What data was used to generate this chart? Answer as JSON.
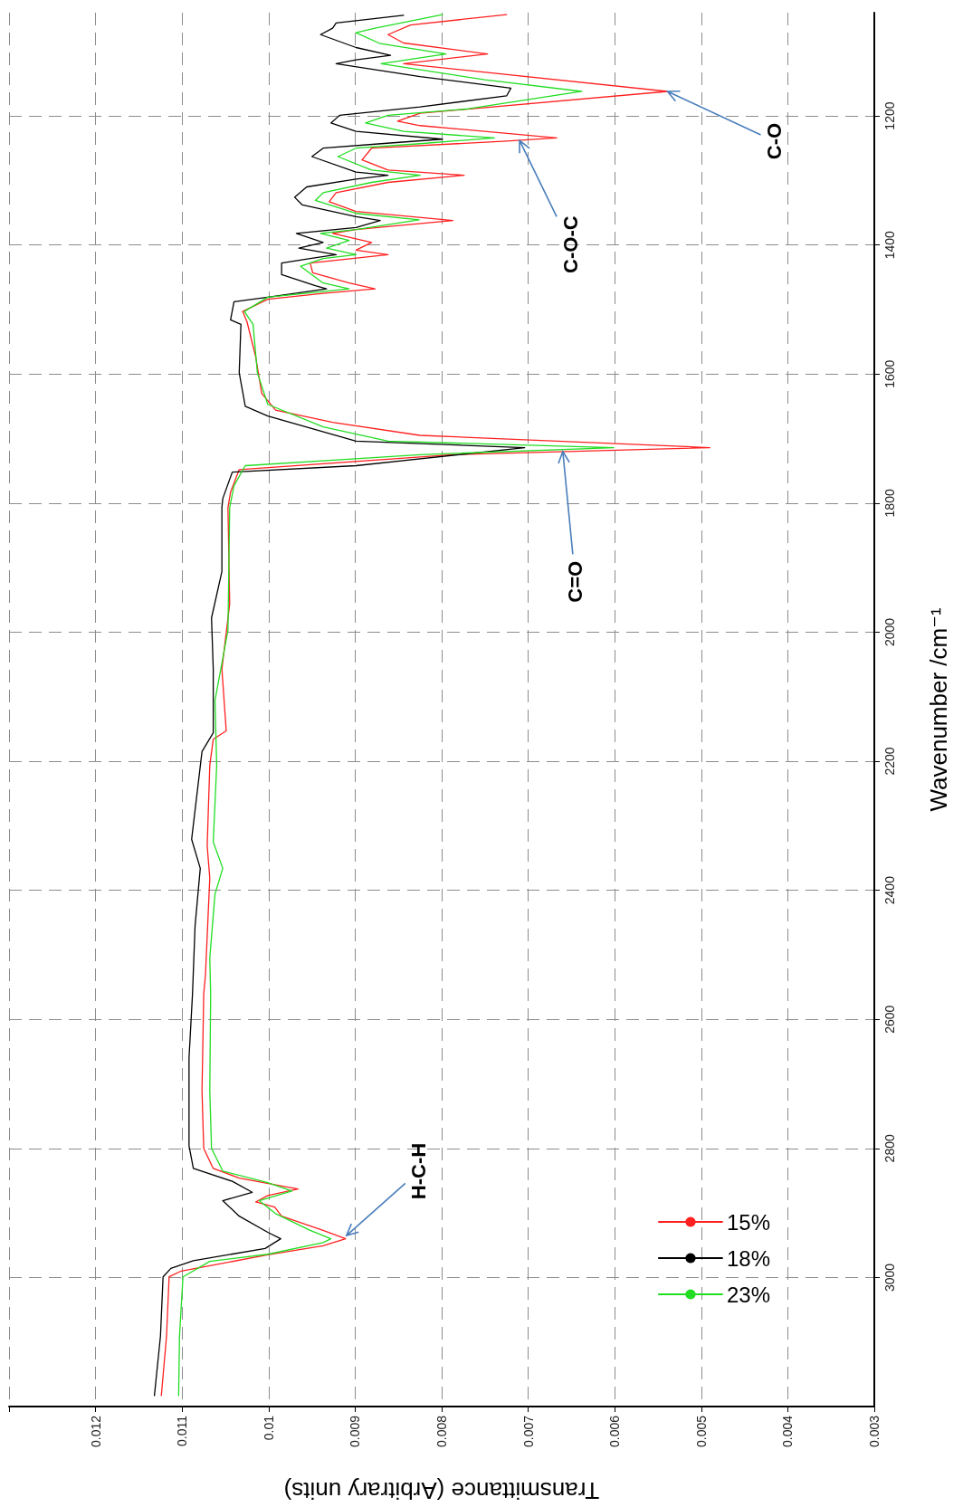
{
  "chart_data": {
    "type": "line",
    "xlabel": "Transmittance (Arbitrary units)",
    "ylabel": "Wavenumber /cm⁻¹",
    "xlim": [
      0.013,
      0.003
    ],
    "xticks": [
      {
        "value": 0.013,
        "label": null
      },
      0.012,
      0.011,
      0.01,
      0.009,
      0.008,
      0.007,
      0.006,
      0.005,
      0.004,
      0.003
    ],
    "ylim": [
      3200,
      1040
    ],
    "yticks": [
      1200,
      1400,
      1600,
      1800,
      2000,
      2200,
      2400,
      2600,
      2800,
      3000
    ],
    "grid": true,
    "legend": "bottom right",
    "marker": "none",
    "line_style": "solid",
    "series": [
      {
        "name": "15%",
        "color": "#ff2020",
        "values": [
          3183,
          3091,
          2999,
          2990,
          2965,
          2951,
          2940,
          2927,
          2905,
          2891,
          2883,
          2873,
          2863,
          2859,
          2846,
          2831,
          2800,
          2711,
          2561,
          2531,
          2381,
          2331,
          2206,
          2166,
          2153,
          2057,
          1956,
          1807,
          1783,
          1748,
          1725,
          1714,
          1695,
          1675,
          1656,
          1630,
          1573,
          1519,
          1503,
          1484,
          1475,
          1468,
          1459,
          1443,
          1428,
          1415,
          1408,
          1396,
          1382,
          1376,
          1362,
          1348,
          1333,
          1319,
          1303,
          1292,
          1284,
          1268,
          1250,
          1239,
          1234,
          1215,
          1208,
          1196,
          1162,
          1119,
          1104,
          1087,
          1074,
          1059,
          1043
        ],
        "x": [
          0.01124,
          0.01118,
          0.01115,
          0.01101,
          0.01001,
          0.00937,
          0.00911,
          0.00937,
          0.00985,
          0.00993,
          0.01015,
          0.01001,
          0.00966,
          0.00982,
          0.01034,
          0.01064,
          0.01075,
          0.01077,
          0.01075,
          0.01073,
          0.01068,
          0.01071,
          0.01068,
          0.01064,
          0.01049,
          0.01054,
          0.01045,
          0.01047,
          0.01044,
          0.01034,
          0.00787,
          0.0049,
          0.00825,
          0.00926,
          0.00992,
          0.01008,
          0.01015,
          0.01025,
          0.0103,
          0.01001,
          0.00937,
          0.00877,
          0.00907,
          0.00949,
          0.00952,
          0.00862,
          0.00899,
          0.00881,
          0.00926,
          0.00899,
          0.00787,
          0.00899,
          0.0093,
          0.00922,
          0.00862,
          0.00774,
          0.00862,
          0.00892,
          0.00881,
          0.00725,
          0.00667,
          0.00825,
          0.00851,
          0.00825,
          0.00539,
          0.00844,
          0.00747,
          0.00844,
          0.00862,
          0.00836,
          0.00725
        ]
      },
      {
        "name": "18%",
        "color": "#000000",
        "values": [
          3183,
          3091,
          2999,
          2986,
          2974,
          2955,
          2940,
          2930,
          2905,
          2881,
          2868,
          2851,
          2831,
          2796,
          2660,
          2561,
          2455,
          2366,
          2321,
          2185,
          2156,
          2057,
          1978,
          1906,
          1807,
          1793,
          1752,
          1742,
          1714,
          1704,
          1665,
          1650,
          1598,
          1523,
          1516,
          1488,
          1481,
          1468,
          1463,
          1446,
          1428,
          1421,
          1415,
          1405,
          1396,
          1382,
          1373,
          1362,
          1356,
          1338,
          1326,
          1310,
          1298,
          1292,
          1287,
          1263,
          1250,
          1243,
          1236,
          1224,
          1211,
          1199,
          1186,
          1169,
          1157,
          1139,
          1119,
          1113,
          1106,
          1094,
          1074,
          1064,
          1056,
          1044
        ],
        "x": [
          0.01132,
          0.01125,
          0.01122,
          0.01113,
          0.01087,
          0.01004,
          0.00986,
          0.01001,
          0.01034,
          0.01053,
          0.01019,
          0.01042,
          0.01087,
          0.01092,
          0.01092,
          0.01088,
          0.01085,
          0.01079,
          0.01089,
          0.01077,
          0.01064,
          0.01064,
          0.01066,
          0.01054,
          0.01054,
          0.01053,
          0.01042,
          0.00899,
          0.00704,
          0.00899,
          0.01001,
          0.01027,
          0.01034,
          0.01032,
          0.01044,
          0.0104,
          0.01001,
          0.00933,
          0.00946,
          0.00985,
          0.00985,
          0.00952,
          0.00922,
          0.00965,
          0.00937,
          0.00968,
          0.00899,
          0.00871,
          0.00899,
          0.00961,
          0.0097,
          0.00956,
          0.00899,
          0.00862,
          0.00899,
          0.0095,
          0.00937,
          0.0087,
          0.00799,
          0.00899,
          0.00928,
          0.00918,
          0.00825,
          0.00725,
          0.0072,
          0.00825,
          0.00922,
          0.00899,
          0.00859,
          0.00899,
          0.0094,
          0.00926,
          0.00922,
          0.00844
        ]
      },
      {
        "name": "23%",
        "color": "#22dd22",
        "values": [
          3183,
          3091,
          2999,
          2975,
          2964,
          2946,
          2940,
          2927,
          2901,
          2881,
          2866,
          2853,
          2835,
          2800,
          2711,
          2561,
          2505,
          2406,
          2366,
          2325,
          2206,
          2106,
          1997,
          1807,
          1773,
          1742,
          1725,
          1714,
          1704,
          1682,
          1647,
          1598,
          1523,
          1503,
          1481,
          1468,
          1459,
          1433,
          1421,
          1415,
          1405,
          1393,
          1382,
          1376,
          1361,
          1351,
          1331,
          1319,
          1303,
          1292,
          1284,
          1263,
          1250,
          1243,
          1234,
          1224,
          1211,
          1199,
          1189,
          1162,
          1144,
          1119,
          1104,
          1088,
          1071,
          1064,
          1043
        ],
        "x": [
          0.01104,
          0.01103,
          0.01099,
          0.01068,
          0.01001,
          0.00937,
          0.00928,
          0.00952,
          0.00992,
          0.01011,
          0.00973,
          0.01001,
          0.01053,
          0.01066,
          0.01068,
          0.01067,
          0.01068,
          0.01062,
          0.01053,
          0.01064,
          0.0106,
          0.01062,
          0.01047,
          0.01045,
          0.0104,
          0.01027,
          0.00825,
          0.00601,
          0.00862,
          0.00937,
          0.01001,
          0.01013,
          0.01018,
          0.01028,
          0.01001,
          0.00907,
          0.00937,
          0.00963,
          0.00937,
          0.00899,
          0.00933,
          0.00907,
          0.0094,
          0.00899,
          0.00826,
          0.00899,
          0.00946,
          0.00937,
          0.00881,
          0.00825,
          0.00881,
          0.0092,
          0.00899,
          0.00825,
          0.00739,
          0.00844,
          0.00888,
          0.00862,
          0.00769,
          0.00638,
          0.0075,
          0.0087,
          0.00795,
          0.00871,
          0.00899,
          0.00877,
          0.00799
        ]
      }
    ],
    "annotations": [
      {
        "text": "H-C-H",
        "x": 0.0091,
        "y": 2935
      },
      {
        "text": "C=O",
        "x": 0.0066,
        "y": 1720
      },
      {
        "text": "C-O-C",
        "x": 0.0071,
        "y": 1238
      },
      {
        "text": "C-O",
        "x": 0.00539,
        "y": 1162
      }
    ]
  }
}
